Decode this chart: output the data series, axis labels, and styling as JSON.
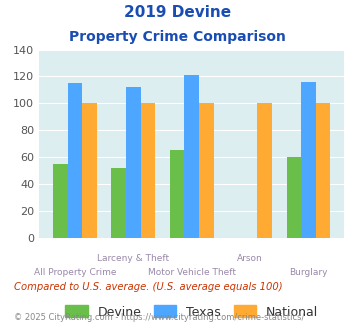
{
  "title_line1": "2019 Devine",
  "title_line2": "Property Crime Comparison",
  "devine": [
    55,
    52,
    65,
    0,
    60
  ],
  "texas": [
    115,
    112,
    121,
    0,
    116
  ],
  "national": [
    100,
    100,
    100,
    100,
    100
  ],
  "devine_color": "#6abf4b",
  "texas_color": "#4da6ff",
  "national_color": "#ffaa33",
  "bg_color": "#ddeef0",
  "title_color": "#1a4db3",
  "xlabel_color": "#9988aa",
  "ylim": [
    0,
    140
  ],
  "yticks": [
    0,
    20,
    40,
    60,
    80,
    100,
    120,
    140
  ],
  "line1_labels": [
    "",
    "Larceny & Theft",
    "",
    "Arson",
    ""
  ],
  "line2_labels": [
    "All Property Crime",
    "",
    "Motor Vehicle Theft",
    "",
    "Burglary"
  ],
  "footnote1": "Compared to U.S. average. (U.S. average equals 100)",
  "footnote2": "© 2025 CityRating.com - https://www.cityrating.com/crime-statistics/",
  "footnote1_color": "#cc3300",
  "footnote2_color": "#888888",
  "legend_labels": [
    "Devine",
    "Texas",
    "National"
  ]
}
